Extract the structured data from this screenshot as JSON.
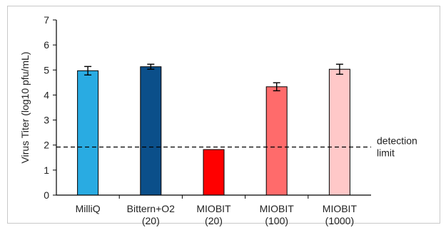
{
  "chart_data": {
    "type": "bar",
    "categories": [
      [
        "MilliQ"
      ],
      [
        "Bittern+O2",
        "(20)"
      ],
      [
        "MIOBIT",
        "(20)"
      ],
      [
        "MIOBIT",
        "(100)"
      ],
      [
        "MIOBIT",
        "(1000)"
      ]
    ],
    "values": [
      4.97,
      5.13,
      1.82,
      4.33,
      5.03
    ],
    "errors": [
      0.17,
      0.1,
      0,
      0.16,
      0.2
    ],
    "colors": [
      "#29abe2",
      "#0b4f8a",
      "#ff0000",
      "#ff6b6b",
      "#ffc8c8"
    ],
    "ylabel": "Virus Titer (log10 pfu/mL)",
    "ylim": [
      0,
      7
    ],
    "yticks": [
      "0",
      "1",
      "2",
      "3",
      "4",
      "5",
      "6",
      "7"
    ],
    "grid": false,
    "threshold": {
      "value": 1.92,
      "style": "dashed",
      "label_lines": [
        "detection",
        "limit"
      ]
    }
  }
}
